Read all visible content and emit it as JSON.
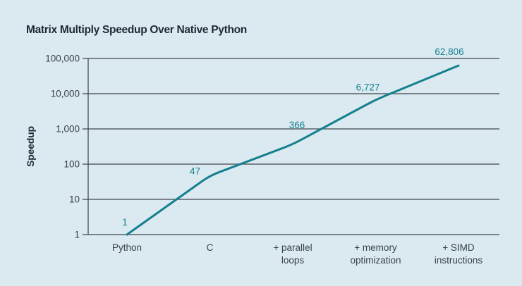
{
  "chart_data": {
    "type": "line",
    "title": "Matrix Multiply Speedup Over Native Python",
    "xlabel": "",
    "ylabel": "Speedup",
    "y_scale": "log",
    "ylim": [
      1,
      100000
    ],
    "grid": true,
    "legend": false,
    "y_ticks": [
      "1",
      "10",
      "100",
      "1,000",
      "10,000",
      "100,000"
    ],
    "y_tick_values": [
      1,
      10,
      100,
      1000,
      10000,
      100000
    ],
    "categories": [
      "Python",
      "C",
      "+ parallel loops",
      "+ memory optimization",
      "+ SIMD instructions"
    ],
    "category_lines": [
      [
        "Python"
      ],
      [
        "C"
      ],
      [
        "+ parallel",
        "loops"
      ],
      [
        "+ memory",
        "optimization"
      ],
      [
        "+ SIMD",
        "instructions"
      ]
    ],
    "values": [
      1,
      47,
      366,
      6727,
      62806
    ],
    "value_labels": [
      "1",
      "47",
      "366",
      "6,727",
      "62,806"
    ],
    "colors": {
      "background": "#dbe9f1",
      "line": "#15808f",
      "grid": "#3f464d",
      "tick_text": "#3a4149",
      "title_text": "#1e2935"
    }
  }
}
